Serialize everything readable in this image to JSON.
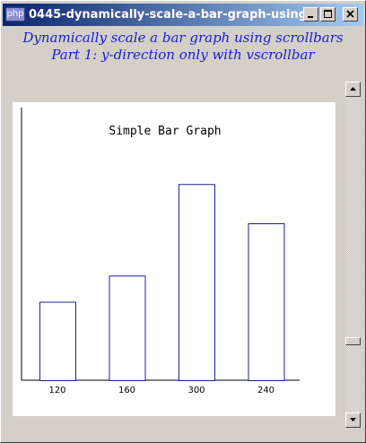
{
  "window": {
    "title": "0445-dynamically-scale-a-bar-graph-using...",
    "app_icon_label": "php"
  },
  "heading": {
    "line1": "Dynamically scale a bar graph using scrollbars",
    "line2": "Part 1: y-direction only with vscrollbar"
  },
  "scrollbar": {
    "orientation": "vertical",
    "thumb_position": 0.78
  },
  "colors": {
    "title_bar_start": "#0a246a",
    "title_bar_end": "#a6caf0",
    "heading_text": "#1a1adb",
    "bar_outline": "#1c1c9a",
    "window_face": "#d4d0c8"
  },
  "chart_data": {
    "type": "bar",
    "title": "Simple Bar Graph",
    "categories": [
      "120",
      "160",
      "300",
      "240"
    ],
    "values": [
      120,
      160,
      300,
      240
    ],
    "xlabel": "",
    "ylabel": "",
    "ylim": [
      0,
      384
    ],
    "grid": false,
    "bar_fill": "#ffffff",
    "bar_outline": "#1c1c9a"
  }
}
